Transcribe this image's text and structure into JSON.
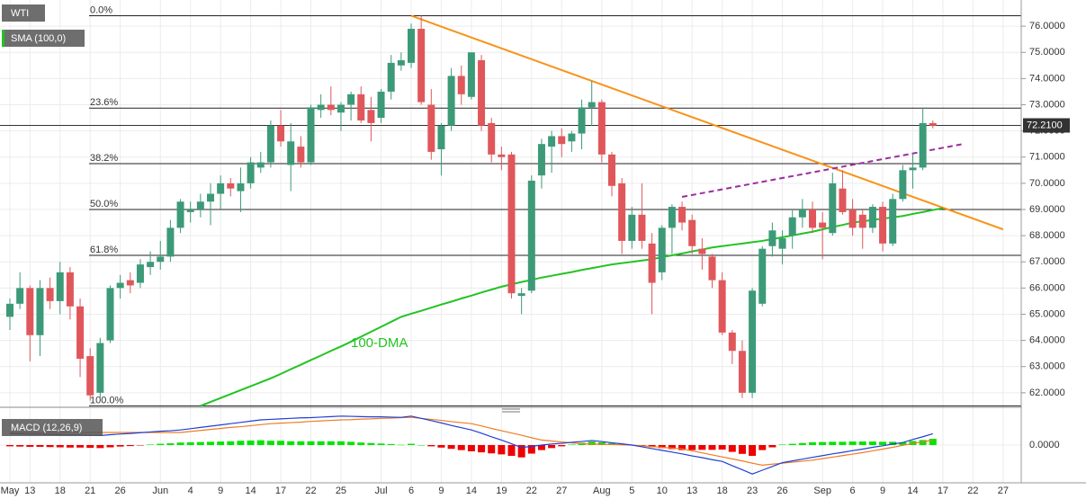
{
  "chart_data": {
    "type": "candlestick",
    "legend": [
      "WTI",
      "SMA (100,0)"
    ],
    "categories": [
      "May",
      null,
      "13",
      null,
      null,
      "18",
      null,
      null,
      "21",
      null,
      null,
      "26",
      null,
      null,
      null,
      "Jun",
      null,
      null,
      "4",
      null,
      null,
      "9",
      null,
      null,
      "14",
      null,
      null,
      "17",
      null,
      null,
      "22",
      null,
      null,
      "25",
      null,
      null,
      null,
      "Jul",
      null,
      null,
      "6",
      null,
      null,
      "9",
      null,
      null,
      "14",
      null,
      null,
      "19",
      null,
      null,
      "22",
      null,
      null,
      "27",
      null,
      null,
      null,
      "Aug",
      null,
      null,
      "5",
      null,
      null,
      "10",
      null,
      null,
      "13",
      null,
      null,
      "18",
      null,
      null,
      "23",
      null,
      null,
      "26",
      null,
      null,
      null,
      "Sep",
      null,
      null,
      "6",
      null,
      null,
      "9",
      null,
      null,
      "14",
      null,
      null,
      "17",
      null,
      null,
      "22",
      null,
      null,
      "27"
    ],
    "ohlc": [
      [
        64.9,
        65.6,
        64.4,
        65.4
      ],
      [
        65.4,
        66.6,
        65.2,
        66.0
      ],
      [
        66.0,
        66.1,
        63.2,
        64.2
      ],
      [
        64.2,
        66.3,
        63.4,
        66.0
      ],
      [
        66.0,
        66.4,
        65.2,
        65.5
      ],
      [
        65.5,
        67.0,
        65.0,
        66.6
      ],
      [
        66.6,
        66.8,
        64.8,
        65.3
      ],
      [
        65.3,
        65.6,
        62.6,
        63.3
      ],
      [
        63.4,
        63.7,
        61.7,
        61.9
      ],
      [
        62.0,
        64.1,
        61.8,
        63.9
      ],
      [
        64.0,
        66.1,
        63.9,
        66.0
      ],
      [
        66.0,
        66.5,
        65.6,
        66.2
      ],
      [
        66.3,
        66.6,
        65.8,
        66.1
      ],
      [
        66.2,
        67.1,
        66.0,
        66.9
      ],
      [
        66.8,
        67.4,
        66.5,
        67.0
      ],
      [
        67.0,
        67.8,
        66.7,
        67.2
      ],
      [
        67.2,
        68.6,
        67.0,
        68.3
      ],
      [
        68.3,
        69.4,
        68.1,
        69.3
      ],
      [
        68.9,
        69.3,
        68.5,
        69.0
      ],
      [
        69.0,
        69.6,
        68.7,
        69.3
      ],
      [
        69.3,
        70.0,
        68.4,
        69.6
      ],
      [
        69.6,
        70.3,
        69.0,
        70.0
      ],
      [
        70.0,
        70.2,
        69.5,
        69.8
      ],
      [
        69.7,
        70.6,
        68.9,
        70.0
      ],
      [
        70.0,
        71.0,
        69.8,
        70.8
      ],
      [
        70.6,
        71.2,
        70.4,
        70.8
      ],
      [
        70.8,
        72.4,
        70.6,
        72.2
      ],
      [
        72.2,
        72.8,
        71.4,
        71.6
      ],
      [
        70.7,
        72.3,
        69.7,
        71.6
      ],
      [
        71.4,
        71.8,
        70.6,
        70.8
      ],
      [
        70.8,
        73.0,
        70.7,
        72.9
      ],
      [
        72.8,
        73.4,
        72.5,
        73.0
      ],
      [
        73.0,
        73.7,
        72.6,
        72.8
      ],
      [
        72.7,
        73.1,
        72.0,
        73.0
      ],
      [
        73.0,
        73.5,
        72.4,
        73.4
      ],
      [
        73.4,
        73.7,
        72.3,
        72.4
      ],
      [
        72.8,
        73.3,
        71.6,
        72.3
      ],
      [
        72.5,
        73.6,
        72.3,
        73.5
      ],
      [
        73.5,
        74.9,
        73.2,
        74.6
      ],
      [
        74.5,
        75.0,
        74.3,
        74.7
      ],
      [
        74.6,
        76.1,
        74.4,
        75.9
      ],
      [
        75.9,
        76.4,
        73.0,
        73.1
      ],
      [
        73.0,
        73.6,
        70.9,
        71.2
      ],
      [
        71.3,
        72.3,
        70.3,
        72.2
      ],
      [
        72.2,
        74.4,
        72.0,
        74.1
      ],
      [
        74.1,
        74.5,
        73.0,
        73.4
      ],
      [
        73.3,
        75.0,
        73.2,
        75.0
      ],
      [
        74.7,
        74.9,
        72.0,
        72.2
      ],
      [
        72.3,
        72.5,
        70.8,
        71.1
      ],
      [
        71.1,
        71.4,
        70.5,
        71.0
      ],
      [
        71.1,
        71.2,
        65.6,
        65.8
      ],
      [
        65.7,
        66.0,
        65.0,
        65.8
      ],
      [
        65.9,
        70.3,
        65.8,
        70.1
      ],
      [
        70.3,
        71.7,
        69.8,
        71.5
      ],
      [
        71.4,
        72.0,
        70.4,
        71.8
      ],
      [
        71.8,
        72.1,
        71.0,
        71.5
      ],
      [
        71.6,
        72.0,
        71.2,
        71.9
      ],
      [
        71.9,
        73.2,
        71.3,
        72.9
      ],
      [
        72.9,
        73.9,
        72.2,
        73.1
      ],
      [
        73.1,
        73.2,
        70.8,
        71.1
      ],
      [
        71.1,
        71.2,
        69.5,
        69.9
      ],
      [
        70.0,
        70.2,
        67.3,
        67.8
      ],
      [
        67.8,
        69.1,
        67.5,
        68.8
      ],
      [
        68.8,
        70.0,
        67.5,
        67.8
      ],
      [
        67.7,
        68.1,
        65.0,
        66.2
      ],
      [
        66.6,
        68.4,
        66.3,
        68.3
      ],
      [
        68.3,
        69.2,
        67.3,
        69.1
      ],
      [
        69.1,
        69.3,
        68.2,
        68.5
      ],
      [
        68.6,
        68.8,
        67.3,
        67.6
      ],
      [
        67.5,
        67.9,
        66.7,
        67.3
      ],
      [
        67.2,
        67.3,
        66.0,
        66.3
      ],
      [
        66.3,
        66.6,
        64.2,
        64.3
      ],
      [
        64.3,
        64.4,
        63.1,
        63.6
      ],
      [
        63.6,
        64.0,
        61.8,
        62.0
      ],
      [
        62.0,
        66.0,
        61.8,
        65.9
      ],
      [
        65.4,
        67.6,
        65.3,
        67.5
      ],
      [
        67.6,
        68.5,
        67.2,
        68.2
      ],
      [
        67.5,
        68.2,
        66.9,
        67.9
      ],
      [
        68.0,
        69.0,
        67.5,
        68.7
      ],
      [
        68.7,
        69.4,
        68.3,
        69.0
      ],
      [
        69.0,
        69.3,
        68.1,
        68.3
      ],
      [
        68.5,
        68.9,
        67.1,
        68.3
      ],
      [
        68.1,
        70.4,
        68.0,
        70.0
      ],
      [
        69.8,
        70.5,
        68.8,
        68.9
      ],
      [
        69.0,
        69.4,
        68.0,
        68.3
      ],
      [
        68.8,
        69.0,
        67.5,
        68.3
      ],
      [
        68.3,
        69.2,
        68.1,
        69.1
      ],
      [
        69.1,
        69.3,
        67.4,
        67.7
      ],
      [
        67.7,
        69.6,
        67.6,
        69.4
      ],
      [
        69.4,
        70.7,
        69.3,
        70.5
      ],
      [
        70.5,
        71.1,
        69.8,
        70.6
      ],
      [
        70.6,
        72.9,
        70.5,
        72.3
      ],
      [
        72.3,
        72.4,
        72.1,
        72.2
      ],
      null,
      null,
      null,
      null,
      null,
      null,
      null
    ],
    "up_color": "#3d9a78",
    "down_color": "#e0575b",
    "sma": {
      "name": "100-DMA",
      "color": "#22c322",
      "values": [
        null,
        null,
        null,
        null,
        null,
        null,
        null,
        null,
        null,
        null,
        null,
        null,
        null,
        null,
        null,
        null,
        null,
        null,
        null,
        61.5,
        61.65,
        61.8,
        61.95,
        62.1,
        62.25,
        62.4,
        62.55,
        62.72,
        62.9,
        63.07,
        63.25,
        63.42,
        63.6,
        63.77,
        63.95,
        64.14,
        64.33,
        64.52,
        64.71,
        64.9,
        65.02,
        65.13,
        65.25,
        65.37,
        65.48,
        65.6,
        65.71,
        65.83,
        65.94,
        66.05,
        66.14,
        66.23,
        66.31,
        66.4,
        66.47,
        66.54,
        66.61,
        66.69,
        66.76,
        66.83,
        66.9,
        66.95,
        67.0,
        67.05,
        67.1,
        67.18,
        67.25,
        67.32,
        67.4,
        67.47,
        67.55,
        67.6,
        67.65,
        67.7,
        67.75,
        67.8,
        67.87,
        67.94,
        68.01,
        68.08,
        68.15,
        68.24,
        68.33,
        68.41,
        68.5,
        68.55,
        68.6,
        68.65,
        68.7,
        68.75,
        68.83,
        68.9,
        68.98,
        69.05,
        null,
        null,
        null,
        null,
        null,
        null
      ]
    },
    "fib_levels": [
      {
        "label": "0.0%",
        "value": 76.4
      },
      {
        "label": "23.6%",
        "value": 72.87
      },
      {
        "label": "38.2%",
        "value": 70.75
      },
      {
        "label": "50.0%",
        "value": 69.0
      },
      {
        "label": "61.8%",
        "value": 67.25
      },
      {
        "label": "100.0%",
        "value": 61.5
      }
    ],
    "trendlines": [
      {
        "x": [
          40,
          99
        ],
        "y": [
          76.4,
          68.24
        ],
        "color": "#f7931a",
        "dashed": false
      },
      {
        "x": [
          67,
          95
        ],
        "y": [
          69.48,
          71.5
        ],
        "color": "#9b2d9f",
        "dashed": true
      }
    ],
    "last_price": {
      "value": 72.21,
      "label": "72.2100"
    },
    "ylim": [
      61.48,
      77.0
    ],
    "yticks": [
      {
        "value": 62,
        "label": "62.0000"
      },
      {
        "value": 63,
        "label": "63.0000"
      },
      {
        "value": 64,
        "label": "64.0000"
      },
      {
        "value": 65,
        "label": "65.0000"
      },
      {
        "value": 66,
        "label": "66.0000"
      },
      {
        "value": 67,
        "label": "67.0000"
      },
      {
        "value": 68,
        "label": "68.0000"
      },
      {
        "value": 69,
        "label": "69.0000"
      },
      {
        "value": 70,
        "label": "70.0000"
      },
      {
        "value": 71,
        "label": "71.0000"
      },
      {
        "value": 72,
        "label": "72.0000"
      },
      {
        "value": 73,
        "label": "73.0000"
      },
      {
        "value": 74,
        "label": "74.0000"
      },
      {
        "value": 75,
        "label": "75.0000"
      },
      {
        "value": 76,
        "label": "76.0000"
      }
    ],
    "grid": true,
    "macd": {
      "label": "MACD (12,26,9)",
      "ylim": [
        -1.5,
        1.25
      ],
      "yticks": [
        {
          "value": 0,
          "label": "0.0000"
        }
      ],
      "macd_color": "#1f3fd6",
      "signal_color": "#f07c22",
      "pos_color": "#00e600",
      "neg_color": "#ee0000",
      "macd": [
        0.45,
        0.44,
        0.43,
        0.43,
        0.42,
        0.41,
        0.4,
        0.4,
        0.39,
        0.38,
        0.41,
        0.44,
        0.46,
        0.49,
        0.52,
        0.55,
        0.57,
        0.6,
        0.65,
        0.7,
        0.75,
        0.8,
        0.85,
        0.9,
        0.95,
        1.0,
        1.02,
        1.04,
        1.06,
        1.08,
        1.09,
        1.11,
        1.13,
        1.15,
        1.14,
        1.13,
        1.12,
        1.12,
        1.11,
        1.1,
        1.15,
        1.06,
        0.97,
        0.88,
        0.78,
        0.69,
        0.6,
        0.47,
        0.33,
        0.2,
        0.05,
        -0.1,
        -0.05,
        0.0,
        0.04,
        0.07,
        0.11,
        0.14,
        0.18,
        0.14,
        0.09,
        0.05,
        0.0,
        -0.07,
        -0.14,
        -0.21,
        -0.28,
        -0.35,
        -0.43,
        -0.5,
        -0.58,
        -0.65,
        -0.82,
        -0.98,
        -1.15,
        -1.0,
        -0.85,
        -0.7,
        -0.63,
        -0.56,
        -0.49,
        -0.42,
        -0.35,
        -0.29,
        -0.22,
        -0.16,
        -0.09,
        -0.03,
        0.04,
        0.1,
        0.22,
        0.33,
        0.45,
        null,
        null,
        null,
        null,
        null,
        null,
        null
      ],
      "signal": [
        0.5,
        0.5,
        0.5,
        0.5,
        0.5,
        0.5,
        0.5,
        0.5,
        0.5,
        0.5,
        0.5,
        0.5,
        0.5,
        0.5,
        0.5,
        0.5,
        0.5,
        0.5,
        0.54,
        0.58,
        0.62,
        0.66,
        0.7,
        0.73,
        0.77,
        0.81,
        0.85,
        0.87,
        0.89,
        0.91,
        0.94,
        0.96,
        0.98,
        1.0,
        1.01,
        1.03,
        1.04,
        1.06,
        1.07,
        1.09,
        1.1,
        1.06,
        1.02,
        0.98,
        0.93,
        0.89,
        0.85,
        0.76,
        0.66,
        0.57,
        0.48,
        0.39,
        0.29,
        0.2,
        0.16,
        0.12,
        0.09,
        0.05,
        0.04,
        0.03,
        0.02,
        0.01,
        0.0,
        -0.03,
        -0.06,
        -0.09,
        -0.12,
        -0.15,
        -0.23,
        -0.31,
        -0.39,
        -0.47,
        -0.55,
        -0.63,
        -0.72,
        -0.8,
        -0.76,
        -0.72,
        -0.68,
        -0.64,
        -0.6,
        -0.54,
        -0.48,
        -0.42,
        -0.36,
        -0.3,
        -0.23,
        -0.16,
        -0.09,
        -0.01,
        0.06,
        0.13,
        0.2,
        null,
        null,
        null,
        null,
        null,
        null,
        null
      ],
      "histogram": [
        -0.05,
        -0.06,
        -0.07,
        -0.07,
        -0.08,
        -0.09,
        -0.1,
        -0.1,
        -0.11,
        -0.12,
        -0.09,
        -0.06,
        -0.04,
        -0.01,
        0.02,
        0.05,
        0.07,
        0.1,
        0.11,
        0.12,
        0.13,
        0.14,
        0.15,
        0.17,
        0.18,
        0.19,
        0.17,
        0.17,
        0.15,
        0.15,
        0.15,
        0.15,
        0.15,
        0.15,
        0.13,
        0.1,
        0.08,
        0.06,
        0.04,
        0.01,
        0.05,
        0.0,
        -0.05,
        -0.1,
        -0.15,
        -0.2,
        -0.25,
        -0.29,
        -0.33,
        -0.37,
        -0.43,
        -0.49,
        -0.34,
        -0.2,
        -0.12,
        -0.05,
        0.02,
        0.09,
        0.14,
        0.11,
        0.07,
        0.04,
        0.0,
        -0.04,
        -0.08,
        -0.12,
        -0.16,
        -0.2,
        -0.2,
        -0.19,
        -0.19,
        -0.18,
        -0.27,
        -0.35,
        -0.43,
        -0.2,
        -0.09,
        0.02,
        0.05,
        0.08,
        0.11,
        0.12,
        0.13,
        0.13,
        0.14,
        0.14,
        0.14,
        0.13,
        0.13,
        0.11,
        0.16,
        0.2,
        0.25,
        null,
        null,
        null,
        null,
        null,
        null,
        null
      ]
    }
  }
}
